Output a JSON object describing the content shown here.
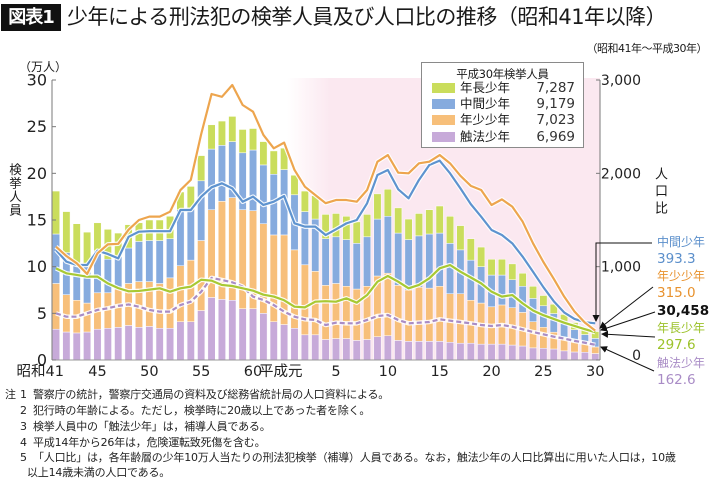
{
  "header": {
    "badge": "図表1",
    "title": "少年による刑法犯の検挙人員及び人口比の推移（昭和41年以降）",
    "period": "（昭和41年～平成30年）"
  },
  "chart_data": {
    "type": "bar",
    "secondary_type": "line",
    "stacked": true,
    "title": "少年による刑法犯の検挙人員及び人口比の推移（昭和41年以降）",
    "subtitle": "（昭和41年～平成30年）",
    "xlabel": "",
    "ylabel": "検挙人員",
    "yunit": "（万人）",
    "ylim": [
      0,
      30
    ],
    "yticks": [
      0,
      5,
      10,
      15,
      20,
      25,
      30
    ],
    "y2label": "人口比",
    "y2lim": [
      0,
      3000
    ],
    "y2ticks": [
      0,
      1000,
      2000,
      3000
    ],
    "y2tick_labels": [
      "0",
      "1,000",
      "2,000",
      "3,000"
    ],
    "grid": false,
    "shaded_region": {
      "from": "平成元",
      "to": "平成30"
    },
    "categories": [
      "昭和41",
      "昭和42",
      "昭和43",
      "昭和44",
      "昭和45",
      "昭和46",
      "昭和47",
      "昭和48",
      "昭和49",
      "昭和50",
      "昭和51",
      "昭和52",
      "昭和53",
      "昭和54",
      "昭和55",
      "昭和56",
      "昭和57",
      "昭和58",
      "昭和59",
      "昭和60",
      "昭和61",
      "昭和62",
      "昭和63",
      "平成元",
      "平成2",
      "平成3",
      "平成4",
      "平成5",
      "平成6",
      "平成7",
      "平成8",
      "平成9",
      "平成10",
      "平成11",
      "平成12",
      "平成13",
      "平成14",
      "平成15",
      "平成16",
      "平成17",
      "平成18",
      "平成19",
      "平成20",
      "平成21",
      "平成22",
      "平成23",
      "平成24",
      "平成25",
      "平成26",
      "平成27",
      "平成28",
      "平成29",
      "平成30"
    ],
    "x_ticks": [
      {
        "index": 0,
        "label": "昭和41"
      },
      {
        "index": 4,
        "label": "45"
      },
      {
        "index": 9,
        "label": "50"
      },
      {
        "index": 14,
        "label": "55"
      },
      {
        "index": 19,
        "label": "60"
      },
      {
        "index": 23,
        "label": "平成元"
      },
      {
        "index": 27,
        "label": "5"
      },
      {
        "index": 32,
        "label": "10"
      },
      {
        "index": 37,
        "label": "15"
      },
      {
        "index": 42,
        "label": "20"
      },
      {
        "index": 47,
        "label": "25"
      },
      {
        "index": 52,
        "label": "30"
      }
    ],
    "series": [
      {
        "name": "触法少年",
        "unit": "万人",
        "color": "#c7aad9",
        "values": [
          3.3,
          3.0,
          2.9,
          3.0,
          3.3,
          3.4,
          3.5,
          3.7,
          3.5,
          3.6,
          3.4,
          3.4,
          4.1,
          4.1,
          5.3,
          6.7,
          6.5,
          6.4,
          5.5,
          5.5,
          5.0,
          4.1,
          3.8,
          3.4,
          2.7,
          2.7,
          2.2,
          2.3,
          2.3,
          2.1,
          2.2,
          2.5,
          2.6,
          2.1,
          2.0,
          2.0,
          2.0,
          2.0,
          1.9,
          1.8,
          1.8,
          1.7,
          1.7,
          1.7,
          1.6,
          1.5,
          1.3,
          1.26,
          1.18,
          0.98,
          0.86,
          0.83,
          0.6969
        ]
      },
      {
        "name": "年少少年",
        "unit": "万人",
        "color": "#f7bf7a",
        "values": [
          4.9,
          4.0,
          3.5,
          3.1,
          3.9,
          3.8,
          4.1,
          4.5,
          4.9,
          4.8,
          4.8,
          5.4,
          6.0,
          6.6,
          7.5,
          9.4,
          10.5,
          11.0,
          10.6,
          10.5,
          9.6,
          9.3,
          9.6,
          8.4,
          7.5,
          6.8,
          5.8,
          5.9,
          5.6,
          5.5,
          5.7,
          6.5,
          6.7,
          5.9,
          5.5,
          5.8,
          5.7,
          5.9,
          5.2,
          5.3,
          4.6,
          4.4,
          4.0,
          4.2,
          4.0,
          3.6,
          2.8,
          2.25,
          1.8,
          1.4,
          1.1,
          0.9,
          0.7023
        ]
      },
      {
        "name": "中間少年",
        "unit": "万人",
        "color": "#86abde",
        "values": [
          5.3,
          4.5,
          4.0,
          3.9,
          4.5,
          3.6,
          3.5,
          3.8,
          4.3,
          4.4,
          4.6,
          4.2,
          6.0,
          5.6,
          6.4,
          6.5,
          6.0,
          6.0,
          6.1,
          6.5,
          6.3,
          6.5,
          7.0,
          5.9,
          5.7,
          5.6,
          5.0,
          5.0,
          5.0,
          4.9,
          5.3,
          6.1,
          6.1,
          5.6,
          5.4,
          5.5,
          5.8,
          5.7,
          5.4,
          4.7,
          4.3,
          3.9,
          3.4,
          3.2,
          3.0,
          2.8,
          2.5,
          2.3,
          2.0,
          1.6,
          1.3,
          1.0,
          0.9179
        ]
      },
      {
        "name": "年長少年",
        "unit": "万人",
        "color": "#cadd5c",
        "values": [
          4.6,
          4.4,
          4.2,
          3.7,
          3.0,
          3.2,
          2.5,
          2.5,
          2.0,
          2.2,
          2.2,
          2.4,
          1.9,
          2.3,
          2.7,
          2.6,
          2.6,
          2.7,
          2.5,
          2.3,
          2.5,
          2.5,
          2.3,
          2.1,
          2.2,
          2.5,
          2.6,
          2.5,
          2.5,
          2.3,
          2.4,
          2.7,
          2.9,
          2.7,
          2.2,
          2.4,
          2.6,
          2.9,
          2.9,
          2.6,
          2.3,
          2.1,
          1.7,
          1.7,
          1.7,
          1.4,
          1.3,
          1.1,
          1.0,
          0.9,
          0.75,
          0.77,
          0.7287
        ]
      }
    ],
    "line_series": [
      {
        "name": "年少少年",
        "axis": "right",
        "color": "#eda54e",
        "values": [
          1214,
          1114,
          1036,
          921,
          1143,
          1239,
          1245,
          1396,
          1500,
          1536,
          1536,
          1589,
          1821,
          1930,
          2420,
          2850,
          2820,
          2946,
          2732,
          2661,
          2411,
          2268,
          2329,
          2036,
          1857,
          1768,
          1680,
          1714,
          1714,
          1696,
          1821,
          2125,
          2196,
          2007,
          2000,
          2107,
          2125,
          2196,
          2107,
          1973,
          1866,
          1821,
          1661,
          1721,
          1643,
          1482,
          1250,
          1050,
          870,
          680,
          520,
          400,
          315.0
        ]
      },
      {
        "name": "中間少年",
        "axis": "right",
        "color": "#5e93cf",
        "values": [
          1179,
          1054,
          1018,
          1018,
          1171,
          1136,
          1089,
          1320,
          1375,
          1380,
          1380,
          1380,
          1607,
          1607,
          1750,
          1850,
          1893,
          1839,
          1696,
          1750,
          1661,
          1696,
          1757,
          1464,
          1429,
          1429,
          1339,
          1400,
          1464,
          1500,
          1679,
          1982,
          2036,
          1829,
          1732,
          1929,
          2089,
          2136,
          2000,
          1839,
          1670,
          1536,
          1393,
          1339,
          1250,
          1107,
          946,
          780,
          630,
          510,
          440,
          405,
          393.3
        ]
      },
      {
        "name": "年長少年",
        "axis": "right",
        "color": "#a8c933",
        "values": [
          982,
          929,
          911,
          893,
          893,
          821,
          770,
          736,
          740,
          754,
          768,
          732,
          768,
          786,
          860,
          850,
          804,
          793,
          768,
          743,
          700,
          680,
          640,
          571,
          564,
          625,
          630,
          625,
          661,
          614,
          696,
          839,
          900,
          839,
          768,
          804,
          875,
          982,
          1018,
          946,
          884,
          821,
          732,
          679,
          696,
          607,
          530,
          480,
          440,
          400,
          365,
          330,
          297.6
        ]
      },
      {
        "name": "触法少年",
        "axis": "right",
        "color": "#a98cc6",
        "values": [
          500,
          464,
          464,
          500,
          536,
          554,
          580,
          595,
          571,
          536,
          518,
          518,
          589,
          625,
          732,
          880,
          857,
          832,
          786,
          679,
          643,
          589,
          518,
          464,
          436,
          429,
          375,
          400,
          393,
          393,
          429,
          471,
          482,
          429,
          393,
          400,
          407,
          436,
          421,
          407,
          393,
          375,
          364,
          375,
          357,
          329,
          300,
          275,
          250,
          230,
          205,
          185,
          162.6
        ]
      }
    ],
    "legend": {
      "title": "平成30年検挙人員",
      "position": "top-right",
      "entries": [
        {
          "label": "年長少年",
          "value": "7,287",
          "color": "#cadd5c"
        },
        {
          "label": "中間少年",
          "value": "9,179",
          "color": "#86abde"
        },
        {
          "label": "年少少年",
          "value": "7,023",
          "color": "#f7bf7a"
        },
        {
          "label": "触法少年",
          "value": "6,969",
          "color": "#c7aad9"
        }
      ]
    },
    "end_annotations": {
      "chukan": {
        "label": "中間少年",
        "value": "393.3",
        "color": "#5b8fcb"
      },
      "nensho": {
        "label": "年少少年",
        "value": "315.0",
        "color": "#e8922e"
      },
      "total": {
        "value": "30,458",
        "color": "#111111"
      },
      "nencho": {
        "label": "年長少年",
        "value": "297.6",
        "color": "#9cc22a"
      },
      "shokuho": {
        "label": "触法少年",
        "value": "162.6",
        "color": "#a98cc6"
      }
    }
  },
  "notes": {
    "prefix": "注",
    "items": [
      {
        "num": "1",
        "lines": [
          "警察庁の統計，警察庁交通局の資料及び総務省統計局の人口資料による。"
        ]
      },
      {
        "num": "2",
        "lines": [
          "犯行時の年齢による。ただし，検挙時に20歳以上であった者を除く。"
        ]
      },
      {
        "num": "3",
        "lines": [
          "検挙人員中の「触法少年」は，補導人員である。"
        ]
      },
      {
        "num": "4",
        "lines": [
          "平成14年から26年は，危険運転致死傷を含む。"
        ]
      },
      {
        "num": "5",
        "lines": [
          "「人口比」は，各年齢層の少年10万人当たりの刑法犯検挙（補導）人員である。なお，触法少年の人口比算出に用いた人口は，10歳",
          "以上14歳未満の人口である。"
        ]
      }
    ]
  }
}
